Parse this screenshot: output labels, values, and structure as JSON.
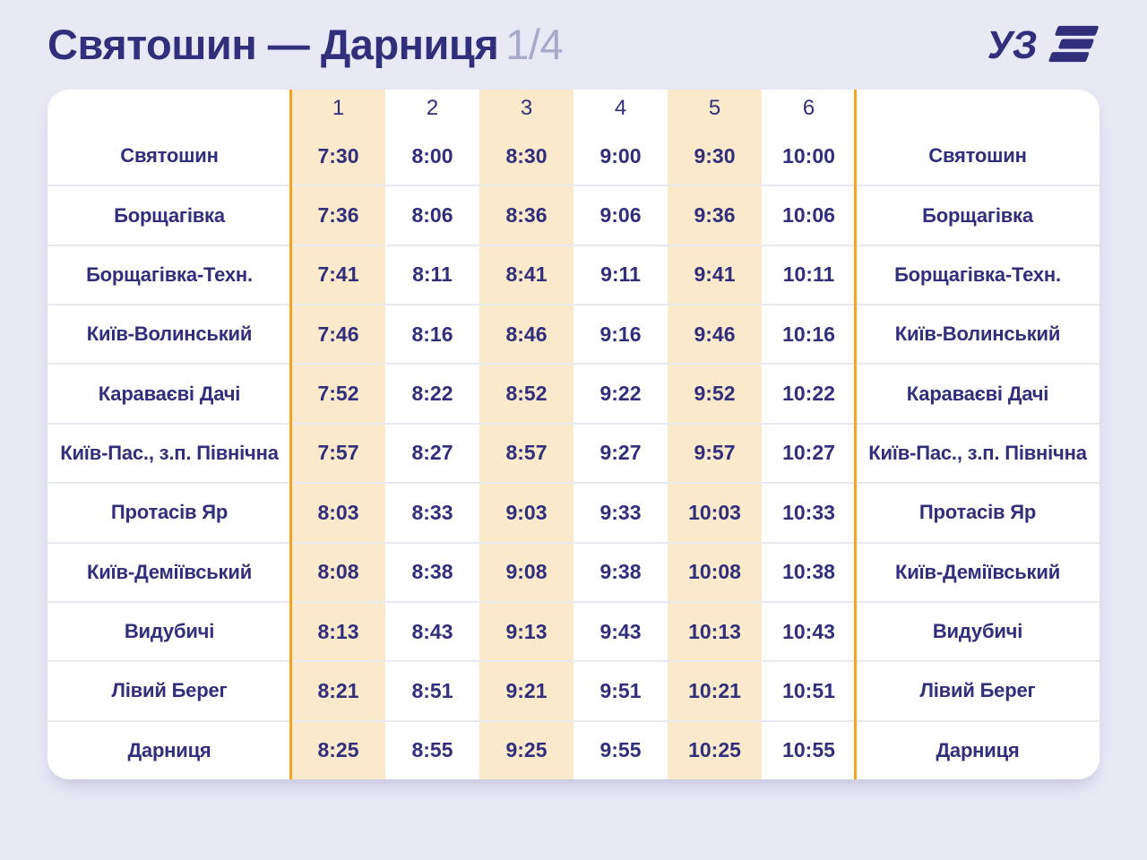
{
  "header": {
    "title": "Святошин — Дарниця",
    "page_indicator": "1/4"
  },
  "logo": {
    "monogram": "УЗ"
  },
  "table": {
    "column_headers": [
      "1",
      "2",
      "3",
      "4",
      "5",
      "6"
    ],
    "rows": [
      {
        "station": "Святошин",
        "times": [
          "7:30",
          "8:00",
          "8:30",
          "9:00",
          "9:30",
          "10:00"
        ]
      },
      {
        "station": "Борщагівка",
        "times": [
          "7:36",
          "8:06",
          "8:36",
          "9:06",
          "9:36",
          "10:06"
        ]
      },
      {
        "station": "Борщагівка-Техн.",
        "times": [
          "7:41",
          "8:11",
          "8:41",
          "9:11",
          "9:41",
          "10:11"
        ]
      },
      {
        "station": "Київ-Волинський",
        "times": [
          "7:46",
          "8:16",
          "8:46",
          "9:16",
          "9:46",
          "10:16"
        ]
      },
      {
        "station": "Караваєві Дачі",
        "times": [
          "7:52",
          "8:22",
          "8:52",
          "9:22",
          "9:52",
          "10:22"
        ]
      },
      {
        "station": "Київ-Пас., з.п. Північна",
        "times": [
          "7:57",
          "8:27",
          "8:57",
          "9:27",
          "9:57",
          "10:27"
        ]
      },
      {
        "station": "Протасів Яр",
        "times": [
          "8:03",
          "8:33",
          "9:03",
          "9:33",
          "10:03",
          "10:33"
        ]
      },
      {
        "station": "Київ-Деміївський",
        "times": [
          "8:08",
          "8:38",
          "9:08",
          "9:38",
          "10:08",
          "10:38"
        ]
      },
      {
        "station": "Видубичі",
        "times": [
          "8:13",
          "8:43",
          "9:13",
          "9:43",
          "10:13",
          "10:43"
        ]
      },
      {
        "station": "Лівий Берег",
        "times": [
          "8:21",
          "8:51",
          "9:21",
          "9:51",
          "10:21",
          "10:51"
        ]
      },
      {
        "station": "Дарниця",
        "times": [
          "8:25",
          "8:55",
          "9:25",
          "9:55",
          "10:25",
          "10:55"
        ]
      }
    ]
  },
  "colors": {
    "bg": "#E9E9F6",
    "card": "#FFFFFF",
    "navy": "#312E7B",
    "muted": "#A6A9C7",
    "stripe": "#FBE9CB",
    "accent": "#F6A41E",
    "divider": "#E9E9F1"
  }
}
